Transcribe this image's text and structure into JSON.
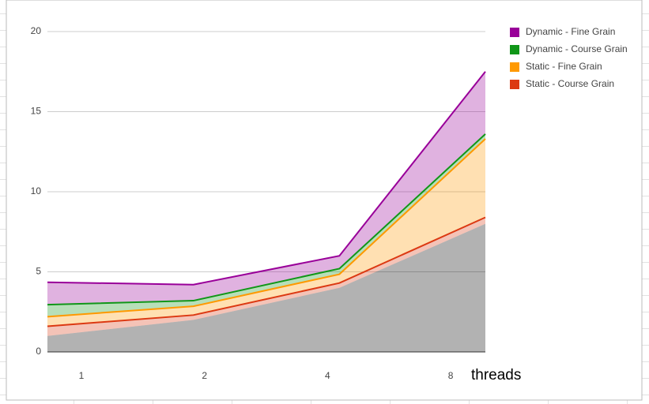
{
  "chart_data": {
    "type": "stacked_area",
    "categories": [
      "1",
      "2",
      "4",
      "8"
    ],
    "series": [
      {
        "color": "#000000",
        "line": false,
        "values": [
          1,
          2,
          4,
          8
        ]
      },
      {
        "name": "Static - Course Grain",
        "color": "#dc3912",
        "values": [
          0.6,
          0.3,
          0.3,
          0.4
        ]
      },
      {
        "name": "Static - Fine Grain",
        "color": "#ff9900",
        "values": [
          0.6,
          0.55,
          0.55,
          4.9
        ]
      },
      {
        "name": "Dynamic - Course Grain",
        "color": "#109618",
        "values": [
          0.75,
          0.35,
          0.35,
          0.3
        ]
      },
      {
        "name": "Dynamic - Fine Grain",
        "color": "#990099",
        "values": [
          1.4,
          1.0,
          0.8,
          3.9
        ]
      }
    ],
    "ylim": [
      0,
      20
    ],
    "yticks": [
      0,
      5,
      10,
      15,
      20
    ],
    "grid": true,
    "annotation": "threads",
    "legend": "right"
  }
}
